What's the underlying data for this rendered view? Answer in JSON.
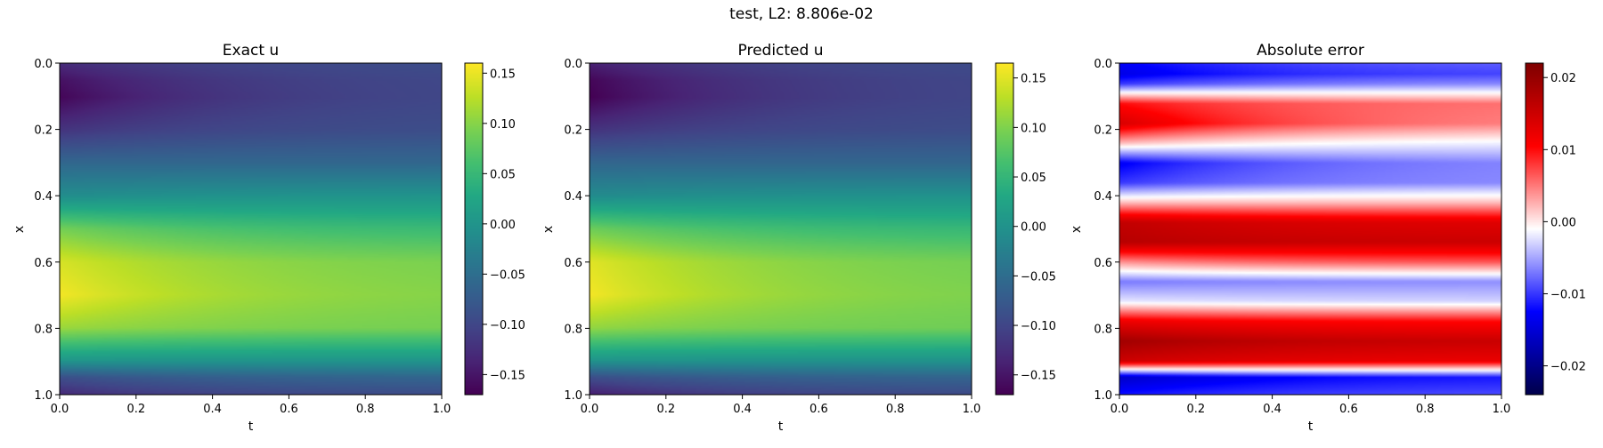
{
  "suptitle": "test, L2: 8.806e-02",
  "colors": {
    "viridis": [
      "#440154",
      "#482475",
      "#414487",
      "#355f8d",
      "#2a788e",
      "#21918c",
      "#22a884",
      "#44bf70",
      "#7ad151",
      "#bddf26",
      "#fde725"
    ],
    "seismic": [
      "#00004c",
      "#0000ff",
      "#ffffff",
      "#ff0000",
      "#800000"
    ]
  },
  "chart_data": [
    {
      "type": "heatmap",
      "title": "Exact u",
      "xlabel": "t",
      "ylabel": "x",
      "xlim": [
        0,
        1
      ],
      "ylim": [
        1,
        0
      ],
      "xticks": [
        "0.0",
        "0.2",
        "0.4",
        "0.6",
        "0.8",
        "1.0"
      ],
      "yticks": [
        "0.0",
        "0.2",
        "0.4",
        "0.6",
        "0.8",
        "1.0"
      ],
      "colormap": "viridis",
      "clim": [
        -0.17,
        0.16
      ],
      "colorbar_ticks": [
        "−0.15",
        "−0.10",
        "−0.05",
        "0.00",
        "0.05",
        "0.10",
        "0.15"
      ],
      "colorbar_tick_values": [
        -0.15,
        -0.1,
        -0.05,
        0.0,
        0.05,
        0.1,
        0.15
      ],
      "profile_x": [
        0.0,
        0.05,
        0.1,
        0.2,
        0.3,
        0.4,
        0.5,
        0.6,
        0.7,
        0.8,
        0.9,
        0.95,
        1.0
      ],
      "profile_u_t0": [
        -0.13,
        -0.155,
        -0.165,
        -0.12,
        -0.06,
        -0.01,
        0.09,
        0.14,
        0.155,
        0.11,
        0.0,
        -0.09,
        -0.13
      ],
      "profile_u_t1": [
        -0.09,
        -0.095,
        -0.095,
        -0.09,
        -0.06,
        0.0,
        0.05,
        0.09,
        0.095,
        0.09,
        0.0,
        -0.06,
        -0.09
      ]
    },
    {
      "type": "heatmap",
      "title": "Predicted u",
      "xlabel": "t",
      "ylabel": "x",
      "xlim": [
        0,
        1
      ],
      "ylim": [
        1,
        0
      ],
      "xticks": [
        "0.0",
        "0.2",
        "0.4",
        "0.6",
        "0.8",
        "1.0"
      ],
      "yticks": [
        "0.0",
        "0.2",
        "0.4",
        "0.6",
        "0.8",
        "1.0"
      ],
      "colormap": "viridis",
      "clim": [
        -0.17,
        0.165
      ],
      "colorbar_ticks": [
        "−0.15",
        "−0.10",
        "−0.05",
        "0.00",
        "0.05",
        "0.10",
        "0.15"
      ],
      "colorbar_tick_values": [
        -0.15,
        -0.1,
        -0.05,
        0.0,
        0.05,
        0.1,
        0.15
      ],
      "profile_x": [
        0.0,
        0.05,
        0.1,
        0.2,
        0.3,
        0.4,
        0.5,
        0.6,
        0.7,
        0.8,
        0.9,
        0.95,
        1.0
      ],
      "profile_u_t0": [
        -0.14,
        -0.165,
        -0.17,
        -0.12,
        -0.06,
        -0.01,
        0.09,
        0.15,
        0.16,
        0.11,
        0.0,
        -0.09,
        -0.14
      ],
      "profile_u_t1": [
        -0.09,
        -0.095,
        -0.095,
        -0.09,
        -0.06,
        0.0,
        0.05,
        0.09,
        0.095,
        0.09,
        0.0,
        -0.06,
        -0.09
      ]
    },
    {
      "type": "heatmap",
      "title": "Absolute error",
      "xlabel": "t",
      "ylabel": "x",
      "xlim": [
        0,
        1
      ],
      "ylim": [
        1,
        0
      ],
      "xticks": [
        "0.0",
        "0.2",
        "0.4",
        "0.6",
        "0.8",
        "1.0"
      ],
      "yticks": [
        "0.0",
        "0.2",
        "0.4",
        "0.6",
        "0.8",
        "1.0"
      ],
      "colormap": "seismic",
      "clim": [
        -0.024,
        0.022
      ],
      "colorbar_ticks": [
        "−0.02",
        "−0.01",
        "0.00",
        "0.01",
        "0.02"
      ],
      "colorbar_tick_values": [
        -0.02,
        -0.01,
        0.0,
        0.01,
        0.02
      ],
      "profile_x": [
        0.0,
        0.03,
        0.06,
        0.12,
        0.18,
        0.24,
        0.3,
        0.36,
        0.42,
        0.48,
        0.54,
        0.6,
        0.66,
        0.72,
        0.78,
        0.84,
        0.9,
        0.95,
        1.0
      ],
      "profile_e_t0": [
        -0.013,
        -0.014,
        -0.01,
        0.01,
        0.014,
        0.002,
        -0.013,
        -0.01,
        0.002,
        0.016,
        0.017,
        0.004,
        -0.007,
        -0.002,
        0.012,
        0.019,
        0.015,
        -0.016,
        -0.012
      ],
      "profile_e_t1": [
        -0.008,
        -0.009,
        -0.006,
        0.005,
        0.004,
        -0.002,
        -0.006,
        -0.006,
        0.002,
        0.013,
        0.015,
        0.007,
        -0.006,
        -0.003,
        0.01,
        0.015,
        0.012,
        -0.011,
        -0.009
      ]
    }
  ]
}
